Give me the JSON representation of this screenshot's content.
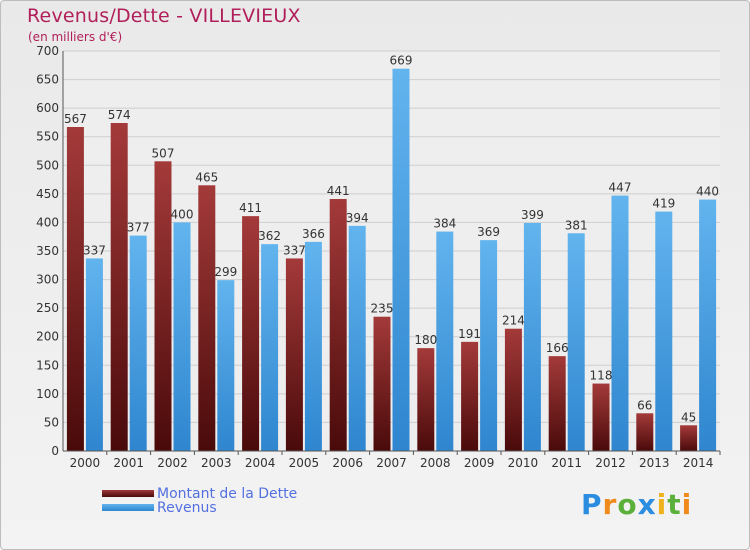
{
  "header": {
    "title": "Revenus/Dette - VILLEVIEUX",
    "subtitle": "(en milliers d'€)"
  },
  "legend": {
    "items": [
      {
        "label": "Montant de la Dette",
        "color": "#7a1a1a"
      },
      {
        "label": "Revenus",
        "color": "#4a9fe0"
      }
    ]
  },
  "logo": {
    "text": "Proxiti",
    "letters": [
      {
        "ch": "P",
        "color": "#2b8de0"
      },
      {
        "ch": "r",
        "color": "#f08a1c"
      },
      {
        "ch": "o",
        "color": "#5ab03a"
      },
      {
        "ch": "x",
        "color": "#2b8de0"
      },
      {
        "ch": "i",
        "color": "#f0b21c"
      },
      {
        "ch": "t",
        "color": "#5ab03a"
      },
      {
        "ch": "i",
        "color": "#f08a1c"
      }
    ]
  },
  "chart_data": {
    "type": "bar",
    "title": "Revenus/Dette - VILLEVIEUX",
    "ylabel": "(en milliers d'€)",
    "xlabel": "",
    "ylim": [
      0,
      700
    ],
    "yticks": [
      0,
      50,
      100,
      150,
      200,
      250,
      300,
      350,
      400,
      450,
      500,
      550,
      600,
      650,
      700
    ],
    "grid": true,
    "legend_position": "bottom-left",
    "categories": [
      "2000",
      "2001",
      "2002",
      "2003",
      "2004",
      "2005",
      "2006",
      "2007",
      "2008",
      "2009",
      "2010",
      "2011",
      "2012",
      "2013",
      "2014"
    ],
    "series": [
      {
        "name": "Montant de la Dette",
        "color_top": "#a43a3a",
        "color_bottom": "#4a0a0a",
        "values": [
          567,
          574,
          507,
          465,
          411,
          337,
          441,
          235,
          180,
          191,
          214,
          166,
          118,
          66,
          45
        ],
        "labels": [
          "567",
          "574",
          "507",
          "465",
          "411",
          "337",
          "441",
          "235",
          "180",
          "191",
          "214",
          "166",
          "118",
          "66",
          "45"
        ]
      },
      {
        "name": "Revenus",
        "color_top": "#62b4ee",
        "color_bottom": "#2f86cf",
        "values": [
          337,
          377,
          400,
          299,
          362,
          366,
          394,
          669,
          384,
          369,
          399,
          381,
          447,
          419,
          440
        ],
        "labels": [
          "337",
          "377",
          "400",
          "299",
          "362",
          "366",
          "394",
          "669",
          "384",
          "369",
          "399",
          "381",
          "447",
          "419",
          "440"
        ]
      }
    ]
  }
}
